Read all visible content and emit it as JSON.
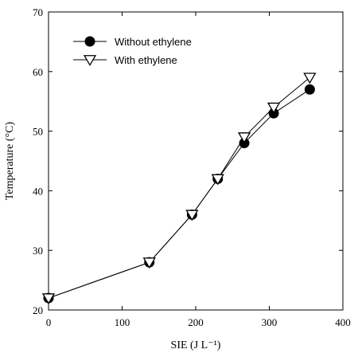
{
  "chart_data": {
    "type": "line",
    "title": "",
    "xlabel": "SIE (J L⁻¹)",
    "ylabel": "Temperature (°C)",
    "xlim": [
      0,
      400
    ],
    "ylim": [
      20,
      70
    ],
    "xticks": [
      0,
      100,
      200,
      300,
      400
    ],
    "yticks": [
      20,
      30,
      40,
      50,
      60,
      70
    ],
    "xtick_labels": [
      "0",
      "100",
      "200",
      "300",
      "400"
    ],
    "ytick_labels": [
      "20",
      "30",
      "40",
      "50",
      "60",
      "70"
    ],
    "grid": false,
    "legend_position": "top-left",
    "series": [
      {
        "name": "Without ethylene",
        "marker": "filled-circle",
        "color": "#000000",
        "x": [
          0,
          137,
          195,
          230,
          266,
          306,
          355
        ],
        "y": [
          22,
          28,
          36,
          42,
          48,
          53,
          57
        ]
      },
      {
        "name": "With ethylene",
        "marker": "open-down-triangle",
        "color": "#000000",
        "x": [
          0,
          137,
          195,
          230,
          266,
          306,
          355
        ],
        "y": [
          22,
          28,
          36,
          42,
          49,
          54,
          59
        ]
      }
    ]
  }
}
